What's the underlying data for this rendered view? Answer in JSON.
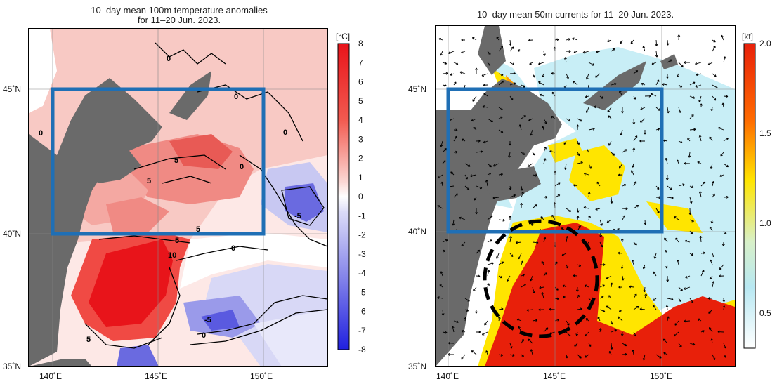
{
  "left": {
    "title_line1": "10–day mean 100m temperature anomalies",
    "title_line2": "for 11–20 Jun. 2023.",
    "colorbar": {
      "unit": "[°C]",
      "ticks": [
        "8",
        "7",
        "6",
        "5",
        "4",
        "3",
        "2",
        "1",
        "0",
        "-1",
        "-2",
        "-3",
        "-4",
        "-5",
        "-6",
        "-7",
        "-8"
      ]
    },
    "contour_labels": [
      "0",
      "0",
      "0",
      "0",
      "0",
      "5",
      "5",
      "5",
      "5",
      "10",
      "0",
      "-5",
      "-5",
      "0",
      "5"
    ],
    "lat_labels": [
      "45˚N",
      "40˚N",
      "35˚N"
    ],
    "lon_labels": [
      "140˚E",
      "145˚E",
      "150˚E"
    ]
  },
  "right": {
    "title": "10–day mean 50m currents for 11–20 Jun. 2023.",
    "colorbar": {
      "unit": "[kt]",
      "ticks": [
        "2.0",
        "1.5",
        "1.0",
        "0.5"
      ]
    },
    "lat_labels": [
      "45˚N",
      "40˚N",
      "35˚N"
    ],
    "lon_labels": [
      "140˚E",
      "145˚E",
      "150˚E"
    ]
  },
  "colors": {
    "land": "#6a6a6a",
    "box": "#1f6fb5",
    "warm_strong": "#e8141a",
    "warm_light": "#f6b8b4",
    "cool": "#6a6ae0",
    "current_fast": "#e8200a",
    "current_mid": "#ffe500",
    "current_slow": "#b8e8f2"
  },
  "map_extent": {
    "lon": [
      139,
      153
    ],
    "lat": [
      35,
      47
    ]
  }
}
